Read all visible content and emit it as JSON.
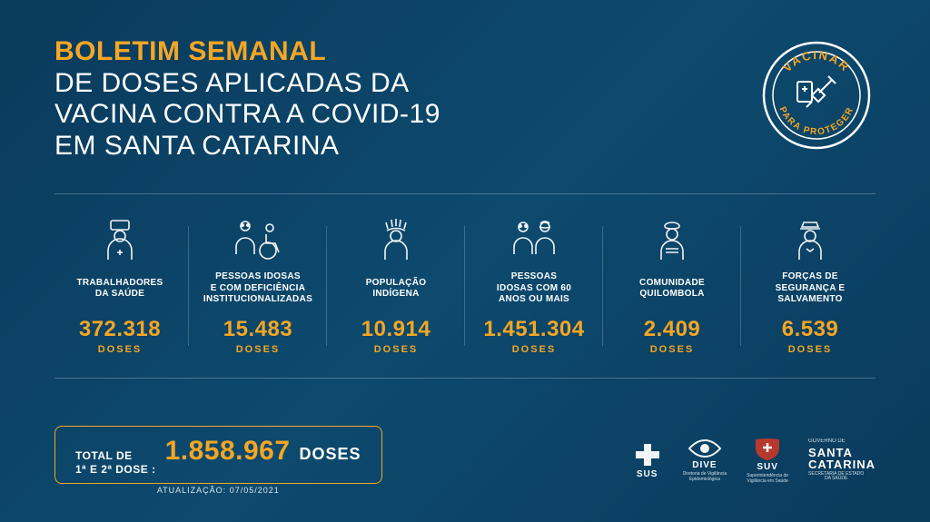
{
  "colors": {
    "background_start": "#0a3a5c",
    "background_mid": "#0d4a6e",
    "accent": "#f5a623",
    "text": "#ffffff",
    "divider": "rgba(255,255,255,0.25)"
  },
  "header": {
    "title_bold": "BOLETIM SEMANAL",
    "title_light_1": "DE DOSES APLICADAS DA",
    "title_light_2": "VACINA CONTRA A COVID-19",
    "title_light_3": "EM SANTA CATARINA",
    "badge_top": "VACINAR",
    "badge_bottom": "PARA PROTEGER"
  },
  "stats": [
    {
      "icon": "health-worker",
      "label": "TRABALHADORES\nDA SAÚDE",
      "value": "372.318",
      "unit": "DOSES"
    },
    {
      "icon": "elderly-disabled",
      "label": "PESSOAS IDOSAS\nE COM DEFICIÊNCIA\nINSTITUCIONALIZADAS",
      "value": "15.483",
      "unit": "DOSES"
    },
    {
      "icon": "indigenous",
      "label": "POPULAÇÃO\nINDÍGENA",
      "value": "10.914",
      "unit": "DOSES"
    },
    {
      "icon": "elderly-60",
      "label": "PESSOAS\nIDOSAS COM 60\nANOS OU MAIS",
      "value": "1.451.304",
      "unit": "DOSES"
    },
    {
      "icon": "quilombola",
      "label": "COMUNIDADE\nQUILOMBOLA",
      "value": "2.409",
      "unit": "DOSES"
    },
    {
      "icon": "security",
      "label": "FORÇAS DE\nSEGURANÇA E\nSALVAMENTO",
      "value": "6.539",
      "unit": "DOSES"
    }
  ],
  "total": {
    "prefix_line1": "TOTAL DE",
    "prefix_line2": "1ª E 2ª DOSE :",
    "value": "1.858.967",
    "unit": "DOSES",
    "update_label": "ATUALIZAÇÃO:",
    "update_date": "07/05/2021"
  },
  "logos": {
    "sus": "SUS",
    "dive": {
      "name": "DIVE",
      "sub": "Diretoria de Vigilância\nEpidemiológica"
    },
    "suv": {
      "name": "SUV",
      "sub": "Superintendência de\nVigilância em Saúde"
    },
    "sc": {
      "line1": "GOVERNO DE",
      "name": "SANTA\nCATARINA",
      "sub": "SECRETARIA DE ESTADO\nDA SAÚDE"
    }
  }
}
